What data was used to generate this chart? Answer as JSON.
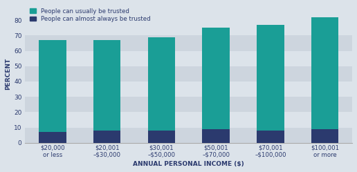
{
  "categories": [
    "$20,000\nor less",
    "$20,001\n–$30,000",
    "$30,001\n–$50,000",
    "$50,001\n–$70,000",
    "$70,001\n–$100,000",
    "$100,001\nor more"
  ],
  "usually_trusted": [
    60,
    59,
    61,
    66,
    69,
    73
  ],
  "almost_always_trusted": [
    7,
    8,
    8,
    9,
    8,
    9
  ],
  "color_usually": "#1a9e96",
  "color_almost_always": "#2b3a6e",
  "ylabel": "PERCENT",
  "xlabel": "ANNUAL PERSONAL INCOME ($)",
  "ylim": [
    0,
    90
  ],
  "yticks": [
    0,
    10,
    20,
    30,
    40,
    50,
    60,
    70,
    80
  ],
  "legend_usually": "People can usually be trusted",
  "legend_almost_always": "People can almost always be trusted",
  "bg_outer": "#dce3ea",
  "stripe_even": "#dce3ea",
  "stripe_odd": "#cdd5de",
  "text_color": "#2b3a6e",
  "bar_width": 0.5
}
